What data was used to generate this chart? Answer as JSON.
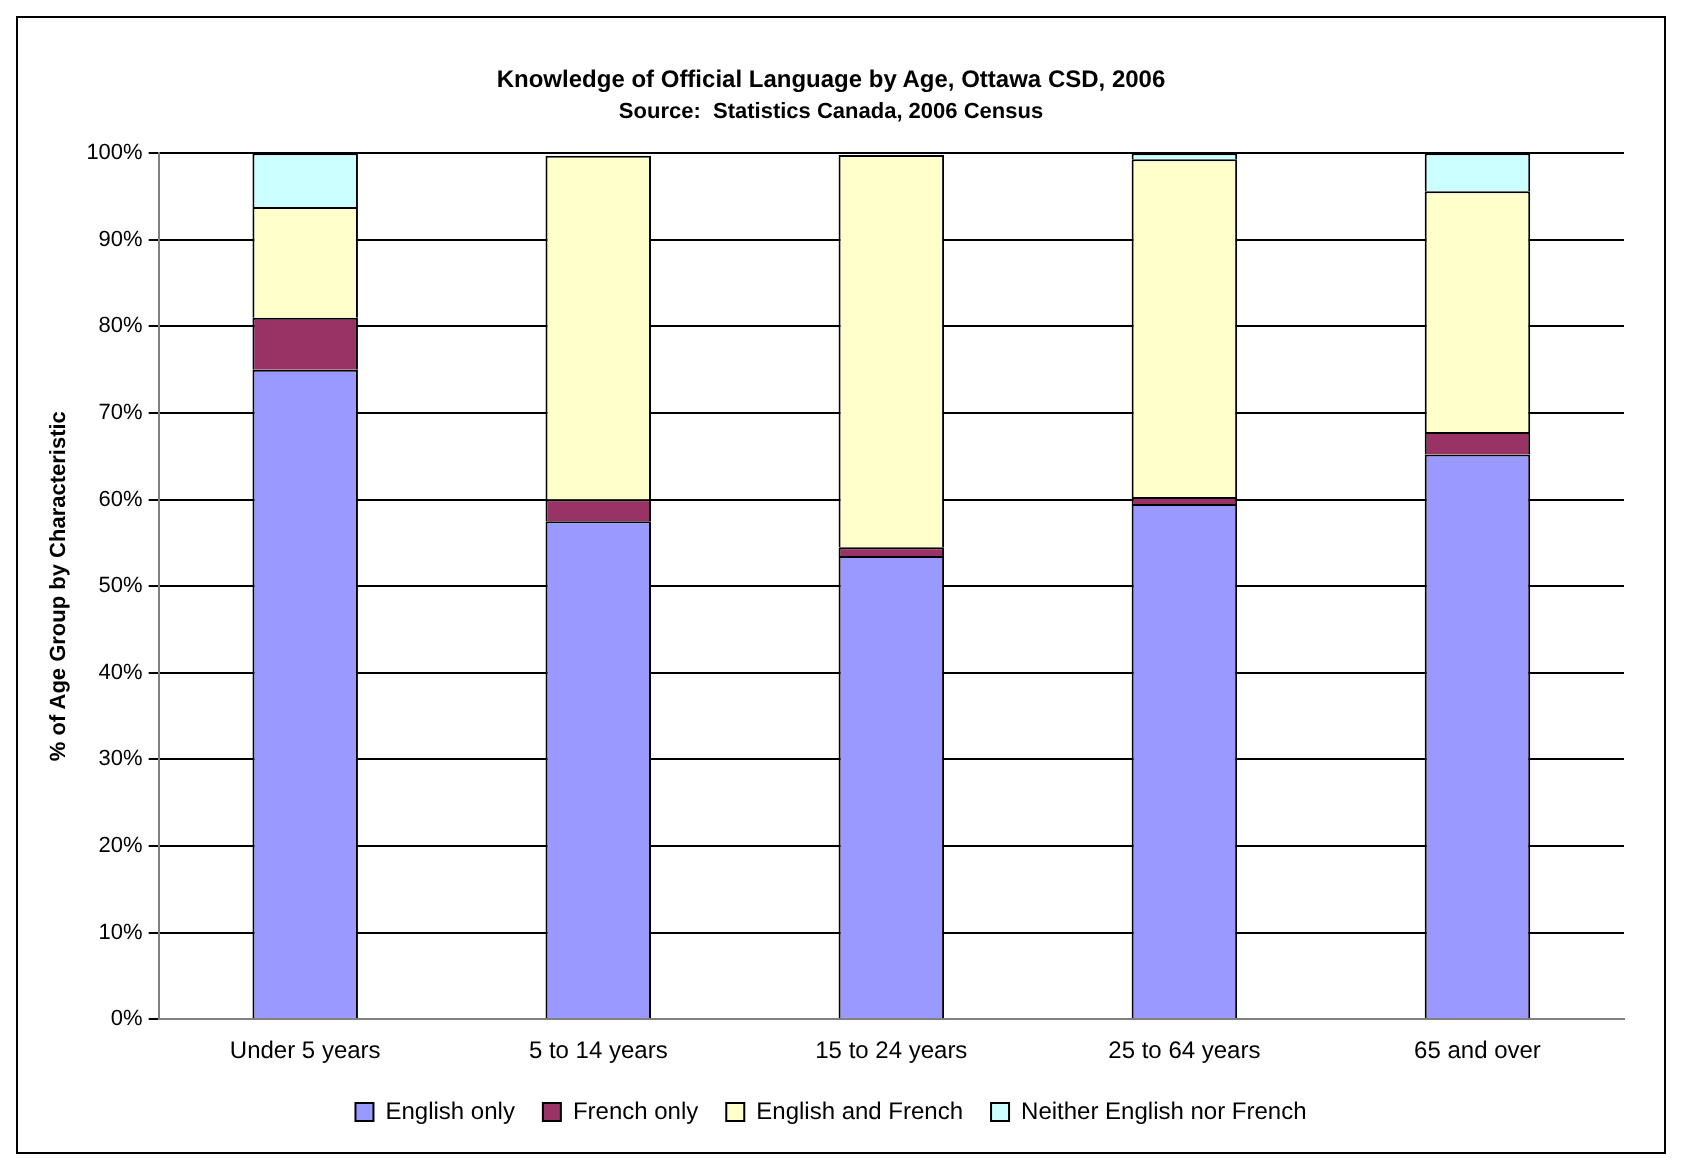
{
  "chart_data": {
    "type": "bar",
    "title": "Knowledge of Official Language by Age, Ottawa CSD, 2006",
    "subtitle": "Source:  Statistics Canada, 2006 Census",
    "ylabel": "% of Age Group by Characteristic",
    "categories": [
      "Under 5 years",
      "5 to 14 years",
      "15 to 24 years",
      "25 to 64 years",
      "65 and over"
    ],
    "stacked": true,
    "ylim": [
      0,
      100
    ],
    "yticks": [
      {
        "value": 0,
        "label": "0%"
      },
      {
        "value": 10,
        "label": "10%"
      },
      {
        "value": 20,
        "label": "20%"
      },
      {
        "value": 30,
        "label": "30%"
      },
      {
        "value": 40,
        "label": "40%"
      },
      {
        "value": 50,
        "label": "50%"
      },
      {
        "value": 60,
        "label": "60%"
      },
      {
        "value": 70,
        "label": "70%"
      },
      {
        "value": 80,
        "label": "80%"
      },
      {
        "value": 90,
        "label": "90%"
      },
      {
        "value": 100,
        "label": "100%"
      }
    ],
    "grid": "y",
    "legend": "bottom",
    "series": [
      {
        "name": "English only",
        "color": "#9999ff",
        "values": [
          75,
          57.5,
          53.5,
          59.5,
          65.2
        ]
      },
      {
        "name": "French only",
        "color": "#993366",
        "values": [
          6,
          2.5,
          1,
          0.8,
          2.6
        ]
      },
      {
        "name": "English and French",
        "color": "#ffffcc",
        "values": [
          12.8,
          39.7,
          45.3,
          39,
          27.8
        ]
      },
      {
        "name": "Neither English nor French",
        "color": "#ccffff",
        "values": [
          6.2,
          null,
          null,
          0.7,
          4.4
        ]
      }
    ]
  }
}
